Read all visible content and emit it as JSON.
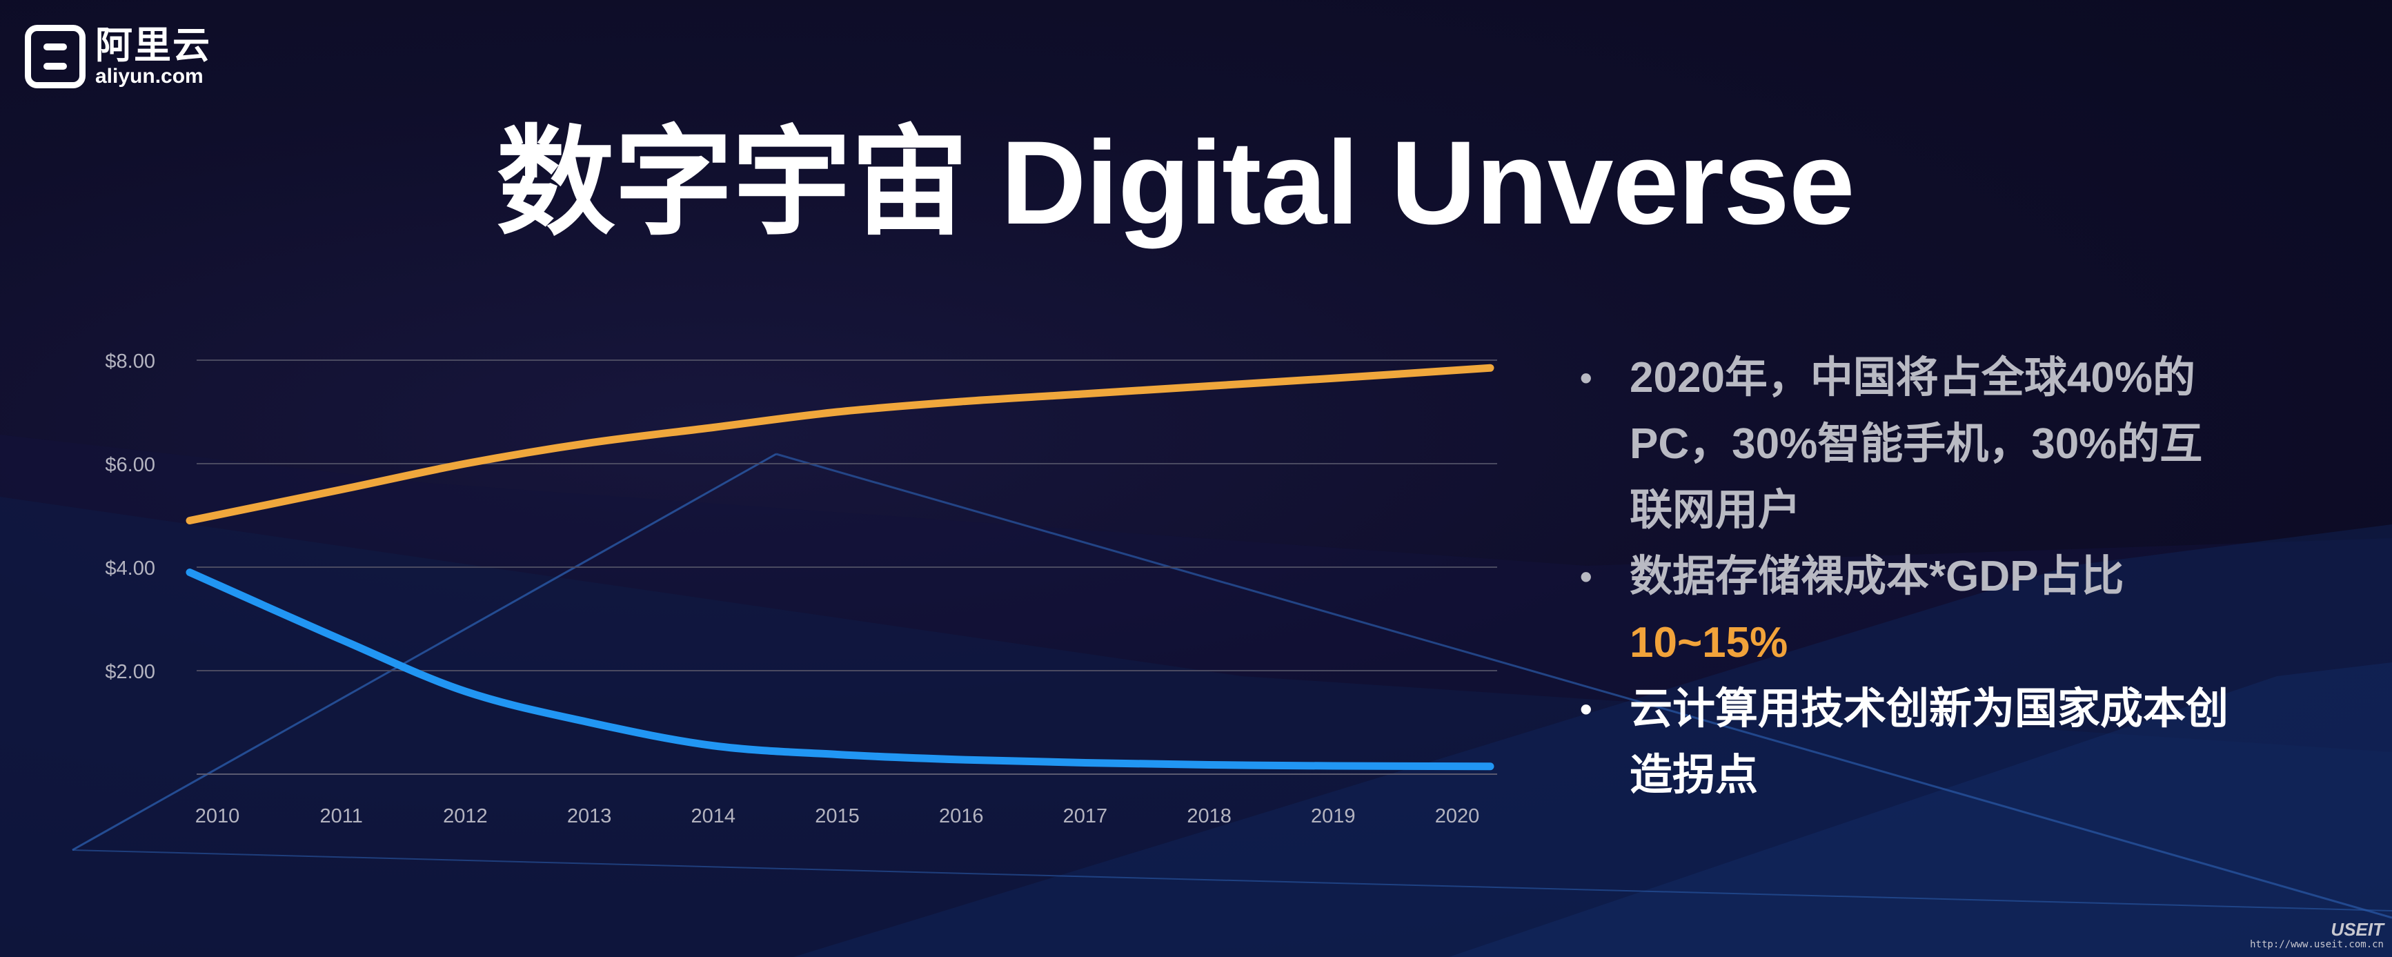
{
  "header": {
    "logo_cn": "阿里云",
    "logo_en": "aliyun.com",
    "title": "数字宇宙 Digital Unverse"
  },
  "chart_data": {
    "type": "line",
    "title": "",
    "xlabel": "",
    "ylabel": "",
    "categories": [
      "2010",
      "2011",
      "2012",
      "2013",
      "2014",
      "2015",
      "2016",
      "2017",
      "2018",
      "2019",
      "2020"
    ],
    "y_ticks": [
      "$2.00",
      "$4.00",
      "$6.00",
      "$8.00"
    ],
    "ylim": [
      0,
      8
    ],
    "series": [
      {
        "name": "orange",
        "color": "#f0a73c",
        "values": [
          4.9,
          5.5,
          6.0,
          6.4,
          6.7,
          7.0,
          7.2,
          7.35,
          7.5,
          7.65,
          7.85
        ]
      },
      {
        "name": "blue",
        "color": "#2196f3",
        "values": [
          3.9,
          2.6,
          1.6,
          1.0,
          0.55,
          0.38,
          0.28,
          0.22,
          0.18,
          0.16,
          0.15
        ]
      }
    ],
    "grid": true,
    "legend": "none"
  },
  "bullets": [
    {
      "text": "2020年，中国将占全球40%的PC，30%智能手机，30%的互联网用户",
      "lines": [
        "2020年，中国将占全球40%的",
        "PC，30%智能手机，30%的互",
        "联网用户"
      ],
      "color": "#b9bac3"
    },
    {
      "text": "数据存储裸成本*GDP占比",
      "lines": [
        "数据存储裸成本*GDP占比"
      ],
      "color": "#b9bac3"
    },
    {
      "text": "10~15%",
      "lines": [
        "10~15%"
      ],
      "color": "#f2a33a",
      "no_dot": true
    },
    {
      "text": "云计算用技术创新为国家成本创造拐点",
      "lines": [
        "云计算用技术创新为国家成本创",
        "造拐点"
      ],
      "color": "#ffffff"
    }
  ],
  "bullet_symbol": "•",
  "watermark": {
    "brand": "USEIT",
    "url": "http://www.useit.com.cn"
  }
}
